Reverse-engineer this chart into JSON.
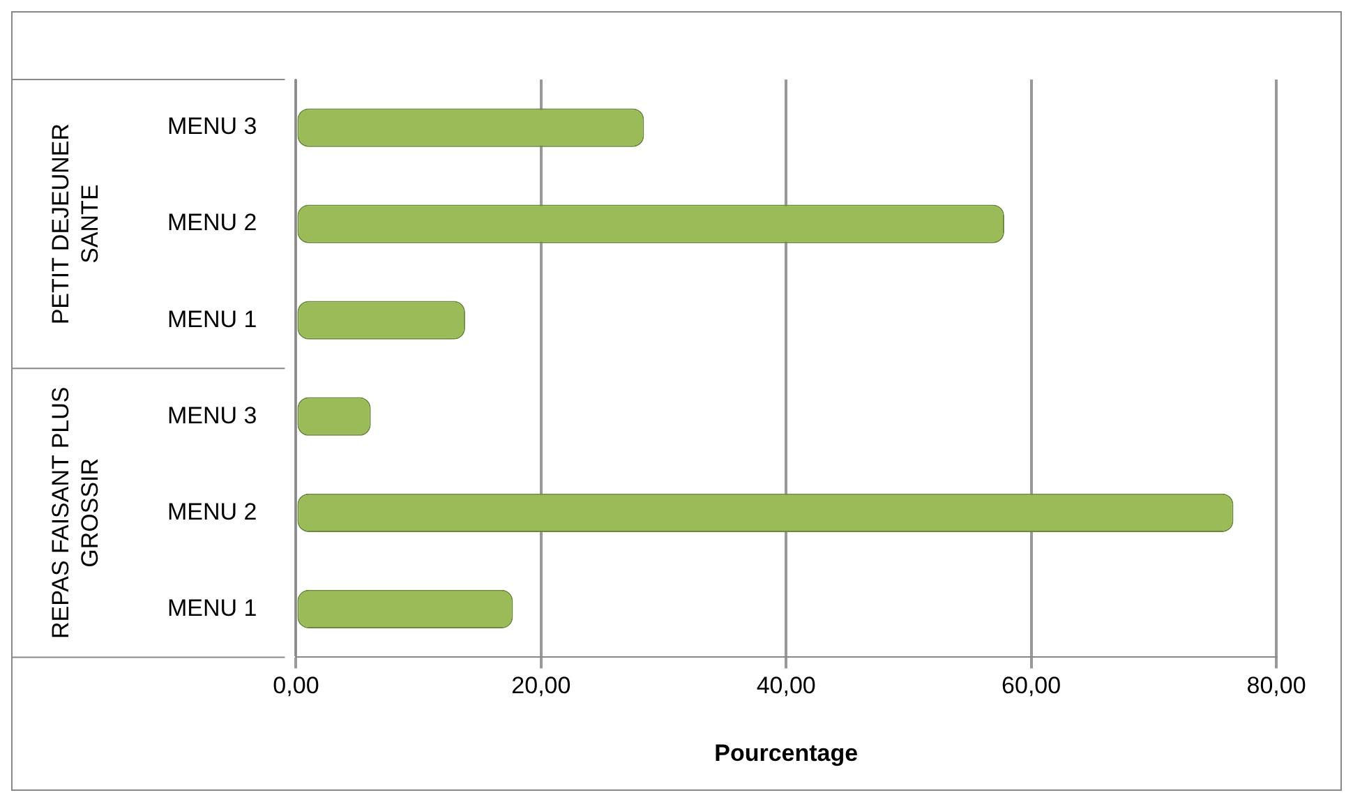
{
  "chart_data": {
    "type": "bar",
    "orientation": "horizontal",
    "xlabel": "Pourcentage",
    "categories": [
      "MENU 3",
      "MENU 2",
      "MENU 1",
      "MENU 3",
      "MENU 2",
      "MENU 1"
    ],
    "values": [
      28.4,
      57.8,
      13.8,
      6.1,
      76.5,
      17.7
    ],
    "color": "#9bbb59",
    "annotations": [
      "PETIT DEJEUNER SANTE",
      "REPAS FAISANT PLUS GROSSIR"
    ],
    "xlim": [
      0,
      80
    ],
    "xticks": [
      {
        "value": 0,
        "label": "0,00"
      },
      {
        "value": 20,
        "label": "20,00"
      },
      {
        "value": 40,
        "label": "40,00"
      },
      {
        "value": 60,
        "label": "60,00"
      },
      {
        "value": 80,
        "label": "80,00"
      }
    ],
    "grid": "x",
    "legend": false
  }
}
